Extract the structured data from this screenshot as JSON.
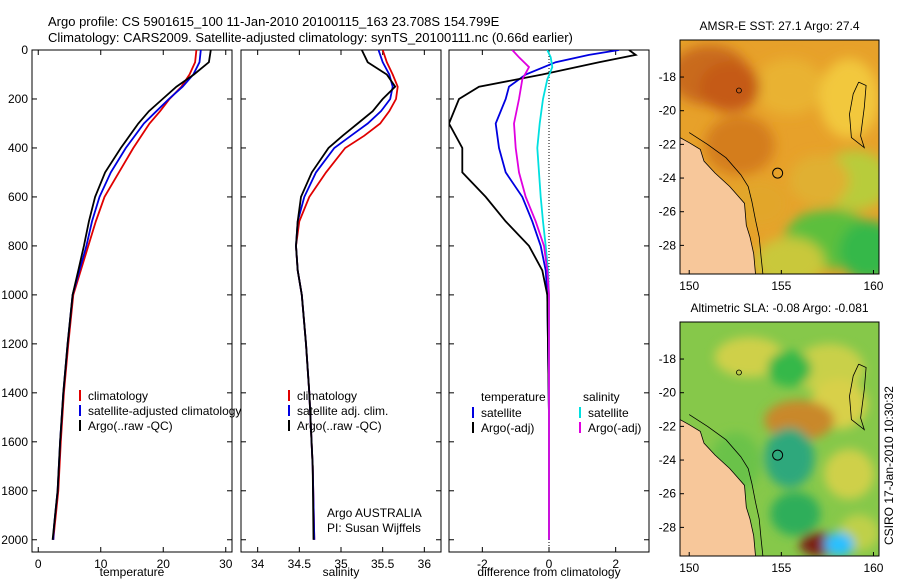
{
  "header": {
    "line1": "Argo profile: CS 5901615_100 11-Jan-2010 20100115_163 23.708S 154.799E",
    "line2": "Climatology: CARS2009. Satellite-adjusted climatology: synTS_20100111.nc (0.66d earlier)"
  },
  "side_stamp": "CSIRO 17-Jan-2010 10:30:32",
  "colors": {
    "climatology": "#e00000",
    "satellite": "#0000e0",
    "argo": "#000000",
    "sal_satellite": "#00e0e0",
    "sal_argo": "#e000e0",
    "land": "#f7c79a"
  },
  "chart_data": [
    {
      "type": "line",
      "xlabel": "temperature",
      "ylabel": "",
      "xlim": [
        -1,
        31
      ],
      "ylim": [
        2050,
        0
      ],
      "y_reversed": true,
      "xticks": [
        0,
        10,
        20,
        30
      ],
      "yticks": [
        0,
        200,
        400,
        600,
        800,
        1000,
        1200,
        1400,
        1600,
        1800,
        2000
      ],
      "legend": {
        "placement": "lower-left",
        "entries": [
          {
            "label": "climatology",
            "color": "#e00000"
          },
          {
            "label": "satellite-adjusted climatology",
            "color": "#0000e0"
          },
          {
            "label": "Argo(..raw -QC)",
            "color": "#000000"
          }
        ]
      },
      "series": [
        {
          "name": "climatology",
          "color": "#e00000",
          "x": [
            25.3,
            25.1,
            24.2,
            22.9,
            21.0,
            19.5,
            17.8,
            15.2,
            12.9,
            10.6,
            9.2,
            8.0,
            6.8,
            5.6,
            4.8,
            4.1,
            3.6,
            3.2,
            2.8,
            2.6,
            2.4
          ],
          "y": [
            0,
            50,
            100,
            150,
            200,
            250,
            300,
            400,
            500,
            600,
            700,
            800,
            900,
            1000,
            1200,
            1400,
            1600,
            1800,
            1900,
            1950,
            2000
          ]
        },
        {
          "name": "satellite-adjusted climatology",
          "color": "#0000e0",
          "x": [
            26.0,
            25.8,
            24.8,
            23.1,
            20.9,
            18.9,
            16.9,
            14.0,
            11.6,
            9.8,
            8.6,
            7.7,
            6.6,
            5.5,
            4.7,
            4.0,
            3.5,
            3.1,
            2.7,
            2.5,
            2.4
          ],
          "y": [
            0,
            50,
            100,
            150,
            200,
            250,
            300,
            400,
            500,
            600,
            700,
            800,
            900,
            1000,
            1200,
            1400,
            1600,
            1800,
            1900,
            1950,
            2000
          ]
        },
        {
          "name": "Argo(..raw -QC)",
          "color": "#000000",
          "x": [
            27.6,
            27.3,
            24.9,
            22.1,
            19.9,
            17.7,
            16.0,
            13.2,
            10.7,
            9.1,
            8.1,
            7.3,
            6.4,
            5.5,
            4.7,
            4.0,
            3.5,
            3.1,
            2.7,
            2.5,
            2.3
          ],
          "y": [
            0,
            50,
            100,
            150,
            200,
            250,
            300,
            400,
            500,
            600,
            700,
            800,
            900,
            1000,
            1200,
            1400,
            1600,
            1800,
            1900,
            1950,
            2000
          ]
        }
      ]
    },
    {
      "type": "line",
      "xlabel": "salinity",
      "ylabel": "",
      "xlim": [
        33.8,
        36.2
      ],
      "ylim": [
        2050,
        0
      ],
      "y_reversed": true,
      "xticks": [
        34,
        34.5,
        35,
        35.5,
        36
      ],
      "legend": {
        "placement": "lower-left",
        "entries": [
          {
            "label": "climatology",
            "color": "#e00000"
          },
          {
            "label": "satellite adj. clim.",
            "color": "#0000e0"
          },
          {
            "label": "Argo(..raw -QC)",
            "color": "#000000"
          }
        ]
      },
      "annotation": {
        "line1": "Argo AUSTRALIA",
        "line2": "PI: Susan Wijffels"
      },
      "series": [
        {
          "name": "climatology",
          "color": "#e00000",
          "x": [
            35.5,
            35.55,
            35.62,
            35.68,
            35.66,
            35.58,
            35.47,
            35.28,
            35.05,
            34.82,
            34.62,
            34.5,
            34.46,
            34.48,
            34.53,
            34.58,
            34.62,
            34.66,
            34.68
          ],
          "y": [
            0,
            50,
            100,
            150,
            200,
            250,
            300,
            350,
            400,
            500,
            600,
            700,
            800,
            900,
            1000,
            1200,
            1400,
            1700,
            2000
          ]
        },
        {
          "name": "satellite adj. clim.",
          "color": "#0000e0",
          "x": [
            35.45,
            35.5,
            35.58,
            35.62,
            35.59,
            35.48,
            35.32,
            35.12,
            34.92,
            34.7,
            34.56,
            34.48,
            34.46,
            34.48,
            34.53,
            34.58,
            34.62,
            34.66,
            34.68
          ],
          "y": [
            0,
            50,
            100,
            150,
            200,
            250,
            300,
            350,
            400,
            500,
            600,
            700,
            800,
            900,
            1000,
            1200,
            1400,
            1700,
            2000
          ]
        },
        {
          "name": "Argo(..raw -QC)",
          "color": "#000000",
          "x": [
            35.25,
            35.32,
            35.55,
            35.65,
            35.5,
            35.38,
            35.2,
            35.02,
            34.85,
            34.65,
            34.52,
            34.48,
            34.46,
            34.48,
            34.53,
            34.58,
            34.62,
            34.66,
            34.67
          ],
          "y": [
            0,
            50,
            100,
            150,
            200,
            250,
            300,
            350,
            400,
            500,
            600,
            700,
            800,
            900,
            1000,
            1200,
            1400,
            1700,
            2000
          ]
        }
      ]
    },
    {
      "type": "line",
      "xlabel": "difference from climatology",
      "ylabel": "",
      "xlim": [
        -3,
        3
      ],
      "ylim": [
        2050,
        0
      ],
      "y_reversed": true,
      "xticks": [
        -2,
        0,
        2
      ],
      "zero_line": true,
      "legend": {
        "placement": "lower",
        "groups": [
          {
            "title": "temperature",
            "entries": [
              {
                "label": "satellite",
                "color": "#0000e0"
              },
              {
                "label": "Argo(-adj)",
                "color": "#000000"
              }
            ]
          },
          {
            "title": "salinity",
            "entries": [
              {
                "label": "satellite",
                "color": "#00e0e0"
              },
              {
                "label": "Argo(-adj)",
                "color": "#e000e0"
              }
            ]
          }
        ]
      },
      "series": [
        {
          "name": "temperature satellite",
          "color": "#0000e0",
          "x": [
            2.1,
            1.2,
            0.2,
            -0.7,
            -1.2,
            -1.3,
            -1.6,
            -1.5,
            -1.3,
            -0.8,
            -0.5,
            -0.25,
            -0.1,
            -0.05,
            0,
            0
          ],
          "y": [
            0,
            20,
            50,
            100,
            150,
            200,
            300,
            400,
            500,
            600,
            700,
            800,
            900,
            1000,
            1500,
            2000
          ]
        },
        {
          "name": "temperature Argo(-adj)",
          "color": "#000000",
          "x": [
            2.4,
            2.6,
            1.5,
            -0.2,
            -2.1,
            -2.7,
            -3.0,
            -2.6,
            -2.6,
            -1.9,
            -1.3,
            -0.6,
            -0.2,
            -0.05,
            0,
            0
          ],
          "y": [
            0,
            20,
            50,
            100,
            150,
            200,
            300,
            400,
            500,
            600,
            700,
            800,
            900,
            1000,
            1500,
            2000
          ]
        },
        {
          "name": "salinity satellite",
          "color": "#00e0e0",
          "x": [
            -0.05,
            0.05,
            0.1,
            -0.05,
            -0.18,
            -0.28,
            -0.35,
            -0.3,
            -0.25,
            -0.18,
            -0.1,
            -0.03,
            0,
            0
          ],
          "y": [
            0,
            30,
            70,
            120,
            200,
            300,
            400,
            500,
            600,
            700,
            800,
            900,
            1000,
            2000
          ]
        },
        {
          "name": "salinity Argo(-adj)",
          "color": "#e000e0",
          "x": [
            -1.1,
            -0.9,
            -0.6,
            -0.8,
            -0.9,
            -1.05,
            -1.0,
            -0.9,
            -0.7,
            -0.4,
            -0.15,
            -0.05,
            0,
            0
          ],
          "y": [
            0,
            30,
            70,
            120,
            200,
            300,
            400,
            500,
            600,
            700,
            800,
            900,
            1000,
            2000
          ]
        }
      ]
    },
    {
      "type": "heatmap",
      "title": "AMSR-E SST: 27.1 Argo: 27.4",
      "xlim": [
        149.5,
        160.3
      ],
      "ylim": [
        -29.7,
        -15.8
      ],
      "xticks": [
        150,
        155,
        160
      ],
      "xtick_labels": [
        "150",
        "155",
        "160"
      ],
      "yticks": [
        -18,
        -20,
        -22,
        -24,
        -26,
        -28
      ],
      "ytick_labels": [
        "-18",
        "-20",
        "-22",
        "-24",
        "-26",
        "-28"
      ],
      "float_position": {
        "lon": 154.799,
        "lat": -23.708
      }
    },
    {
      "type": "heatmap",
      "title": "Altimetric SLA: -0.08 Argo: -0.081",
      "xlim": [
        149.5,
        160.3
      ],
      "ylim": [
        -29.7,
        -15.8
      ],
      "xticks": [
        150,
        155,
        160
      ],
      "xtick_labels": [
        "150",
        "155",
        "160"
      ],
      "yticks": [
        -18,
        -20,
        -22,
        -24,
        -26,
        -28
      ],
      "ytick_labels": [
        "-18",
        "-20",
        "-22",
        "-24",
        "-26",
        "-28"
      ],
      "float_position": {
        "lon": 154.799,
        "lat": -23.708
      }
    }
  ]
}
